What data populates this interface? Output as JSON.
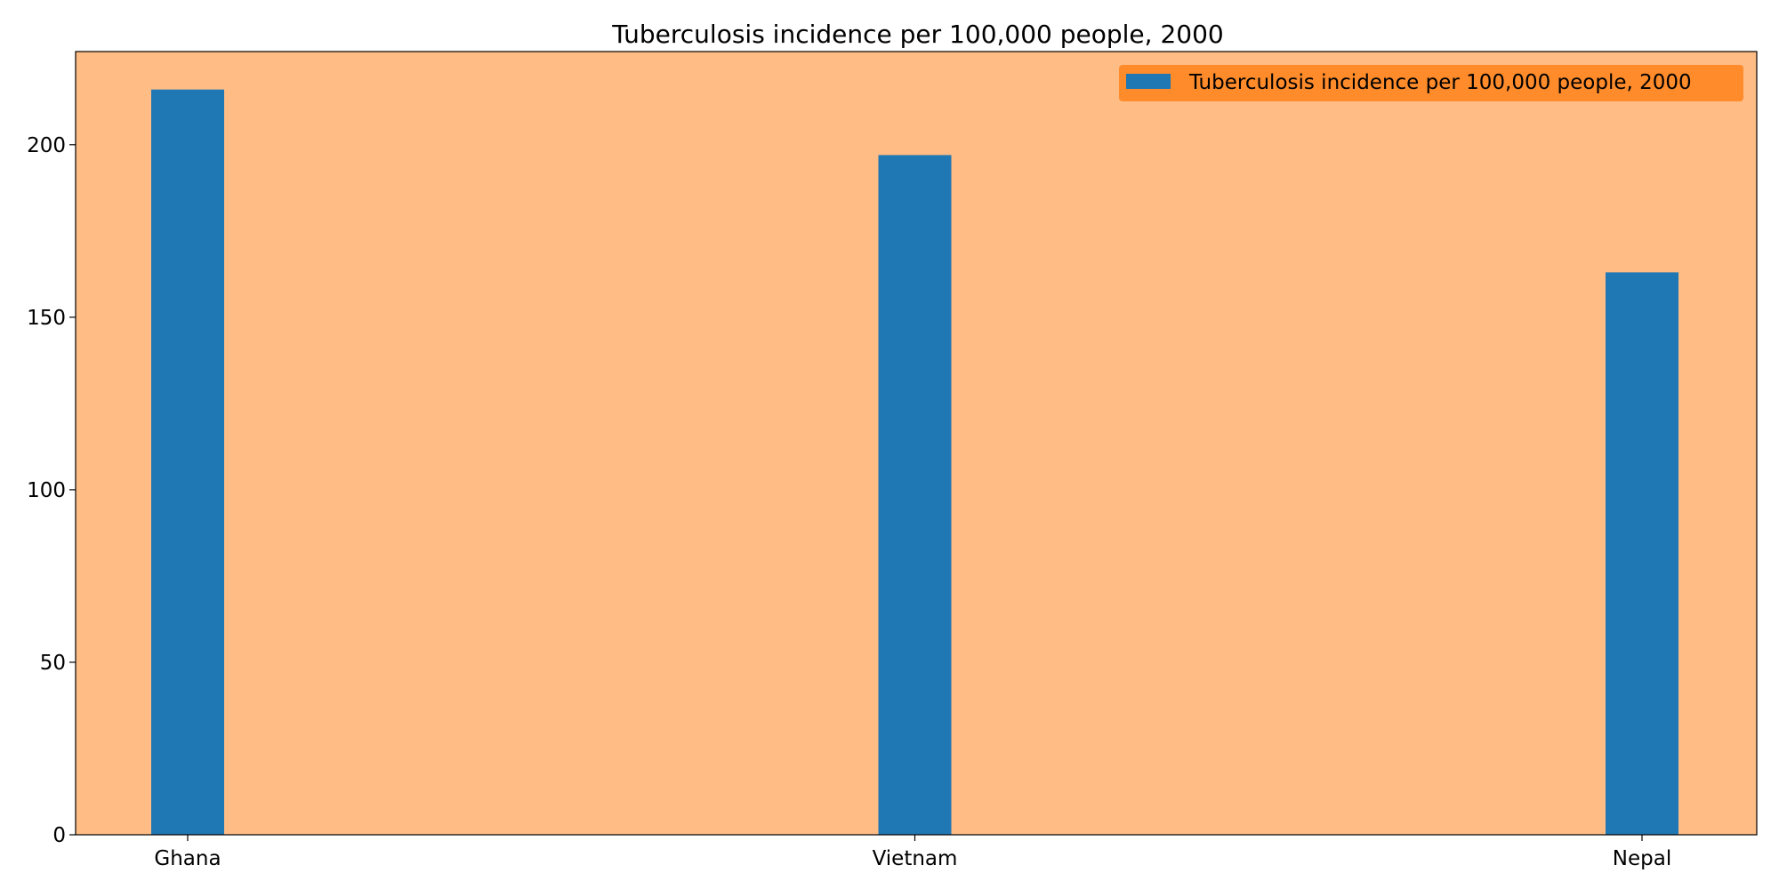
{
  "chart_data": {
    "type": "bar",
    "title": "Tuberculosis incidence per 100,000 people, 2000",
    "xlabel": "",
    "ylabel": "",
    "categories": [
      "Ghana",
      "Vietnam",
      "Nepal"
    ],
    "series": [
      {
        "name": "Tuberculosis incidence per 100,000 people, 2000",
        "values": [
          216,
          197,
          163
        ]
      }
    ],
    "ylim": [
      0,
      227
    ],
    "yticks": [
      0,
      50,
      100,
      150,
      200
    ],
    "ytick_labels": [
      "0",
      "50",
      "100",
      "150",
      "200"
    ],
    "grid": false,
    "legend_position": "top-right",
    "colors": {
      "bar": "#1f77b4",
      "plot_background": "#ffbc85",
      "legend_background": "#ff8b2b",
      "axis": "#000000"
    }
  }
}
